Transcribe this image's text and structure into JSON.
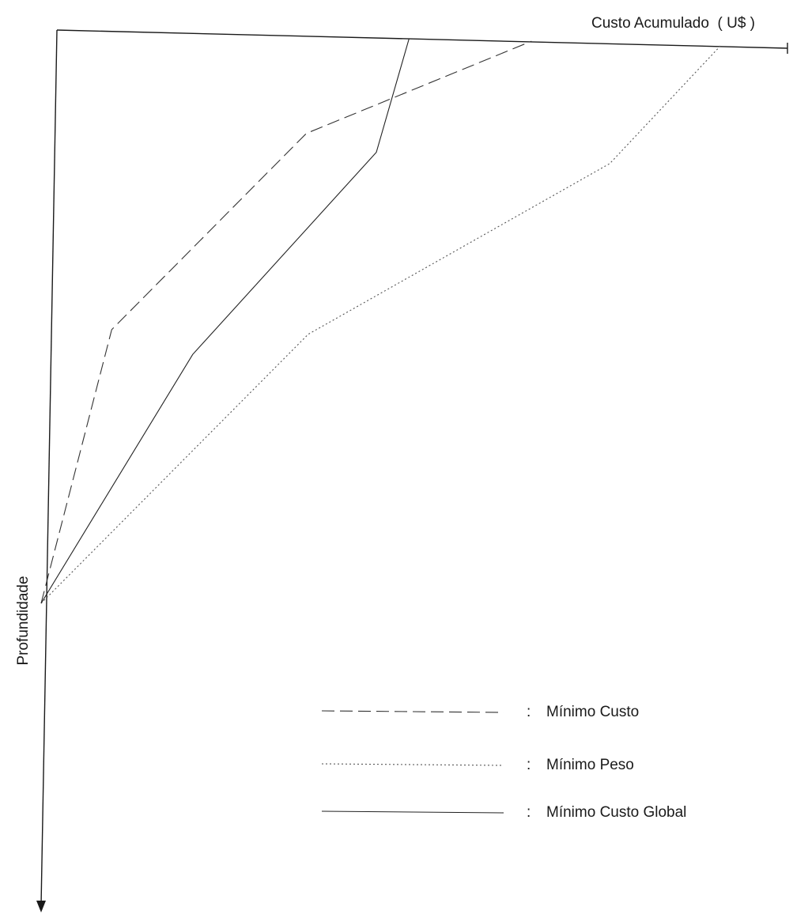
{
  "chart_data": {
    "type": "line",
    "xlabel": "Custo Acumulado  ( U$ )",
    "ylabel": "Profundidade",
    "x_axis_position": "top",
    "y_axis_direction": "downward",
    "grid": false,
    "legend_position": "bottom-right",
    "series": [
      {
        "name": "Mínimo Custo",
        "line_style": "dashed",
        "color": "#333333",
        "points": [
          [
            0,
            1000
          ],
          [
            85,
            520
          ],
          [
            340,
            170
          ],
          [
            640,
            0
          ]
        ]
      },
      {
        "name": "Mínimo Peso",
        "line_style": "dotted",
        "color": "#555555",
        "points": [
          [
            0,
            1000
          ],
          [
            350,
            520
          ],
          [
            750,
            210
          ],
          [
            895,
            0
          ]
        ]
      },
      {
        "name": "Mínimo Custo Global",
        "line_style": "solid",
        "color": "#222222",
        "points": [
          [
            0,
            1000
          ],
          [
            195,
            560
          ],
          [
            435,
            200
          ],
          [
            475,
            0
          ]
        ]
      }
    ]
  },
  "legend": {
    "separator": ":"
  }
}
